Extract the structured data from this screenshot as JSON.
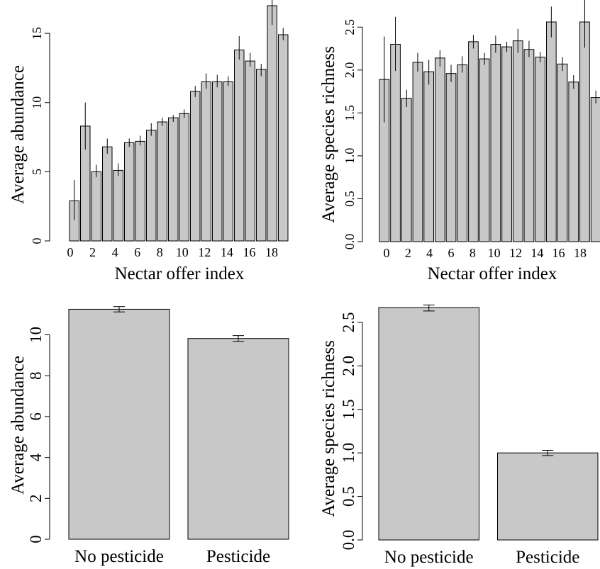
{
  "chart_data": [
    {
      "type": "bar",
      "ylabel": "Average abundance",
      "xlabel": "Nectar offer index",
      "ylim": [
        0,
        17
      ],
      "yticks": [
        "0",
        "5",
        "10",
        "15"
      ],
      "ytick_values": [
        0,
        5,
        10,
        15
      ],
      "categories": [
        "0",
        "1",
        "2",
        "3",
        "4",
        "5",
        "6",
        "7",
        "8",
        "9",
        "10",
        "11",
        "12",
        "13",
        "14",
        "15",
        "16",
        "17",
        "18",
        "19"
      ],
      "xtick_labels": [
        "0",
        "2",
        "4",
        "6",
        "8",
        "10",
        "12",
        "14",
        "16",
        "18"
      ],
      "values": [
        2.9,
        8.3,
        5.0,
        6.8,
        5.1,
        7.1,
        7.2,
        8.0,
        8.6,
        8.9,
        9.2,
        10.8,
        11.5,
        11.5,
        11.5,
        13.8,
        13.0,
        12.4,
        17.0,
        14.9
      ],
      "err_low": [
        1.5,
        6.6,
        4.6,
        6.3,
        4.7,
        6.8,
        6.9,
        7.6,
        8.3,
        8.6,
        8.9,
        10.4,
        11.0,
        11.1,
        11.2,
        13.1,
        12.6,
        11.9,
        15.6,
        14.5
      ],
      "err_high": [
        4.4,
        10.0,
        5.5,
        7.4,
        5.6,
        7.4,
        7.6,
        8.5,
        8.9,
        9.1,
        9.5,
        11.2,
        12.1,
        12.0,
        11.9,
        14.8,
        13.6,
        12.8,
        18.9,
        15.4
      ],
      "grid": false
    },
    {
      "type": "bar",
      "ylabel": "Average species richness",
      "xlabel": "Nectar offer index",
      "ylim": [
        0,
        2.75
      ],
      "yticks": [
        "0.0",
        "0.5",
        "1.0",
        "1.5",
        "2.0",
        "2.5"
      ],
      "ytick_values": [
        0,
        0.5,
        1.0,
        1.5,
        2.0,
        2.5
      ],
      "categories": [
        "0",
        "1",
        "2",
        "3",
        "4",
        "5",
        "6",
        "7",
        "8",
        "9",
        "10",
        "11",
        "12",
        "13",
        "14",
        "15",
        "16",
        "17",
        "18",
        "19"
      ],
      "xtick_labels": [
        "0",
        "2",
        "4",
        "6",
        "8",
        "10",
        "12",
        "14",
        "16",
        "18"
      ],
      "values": [
        1.89,
        2.3,
        1.67,
        2.09,
        1.98,
        2.14,
        1.96,
        2.06,
        2.33,
        2.13,
        2.3,
        2.27,
        2.34,
        2.24,
        2.15,
        2.56,
        2.07,
        1.86,
        2.56,
        1.68
      ],
      "err_low": [
        1.39,
        1.99,
        1.57,
        1.98,
        1.83,
        2.04,
        1.86,
        1.97,
        2.25,
        2.06,
        2.2,
        2.21,
        2.2,
        2.15,
        2.09,
        2.38,
        1.99,
        1.78,
        2.26,
        1.61
      ],
      "err_high": [
        2.39,
        2.62,
        1.77,
        2.2,
        2.12,
        2.23,
        2.06,
        2.16,
        2.41,
        2.2,
        2.4,
        2.33,
        2.48,
        2.34,
        2.21,
        2.74,
        2.15,
        1.94,
        2.86,
        1.76
      ],
      "grid": false
    },
    {
      "type": "bar",
      "ylabel": "Average abundance",
      "xlabel": "",
      "ylim": [
        0,
        11.3
      ],
      "yticks": [
        "0",
        "2",
        "4",
        "6",
        "8",
        "10"
      ],
      "ytick_values": [
        0,
        2,
        4,
        6,
        8,
        10
      ],
      "categories": [
        "No pesticide",
        "Pesticide"
      ],
      "xtick_labels": [
        "No pesticide",
        "Pesticide"
      ],
      "values": [
        11.25,
        9.82
      ],
      "err_low": [
        11.12,
        9.68
      ],
      "err_high": [
        11.38,
        9.96
      ],
      "grid": false
    },
    {
      "type": "bar",
      "ylabel": "Average species richness",
      "xlabel": "",
      "ylim": [
        0,
        2.67
      ],
      "yticks": [
        "0.0",
        "0.5",
        "1.0",
        "1.5",
        "2.0",
        "2.5"
      ],
      "ytick_values": [
        0,
        0.5,
        1.0,
        1.5,
        2.0,
        2.5
      ],
      "categories": [
        "No pesticide",
        "Pesticide"
      ],
      "xtick_labels": [
        "No pesticide",
        "Pesticide"
      ],
      "values": [
        2.67,
        1.0
      ],
      "err_low": [
        2.63,
        0.97
      ],
      "err_high": [
        2.7,
        1.03
      ],
      "grid": false
    }
  ]
}
